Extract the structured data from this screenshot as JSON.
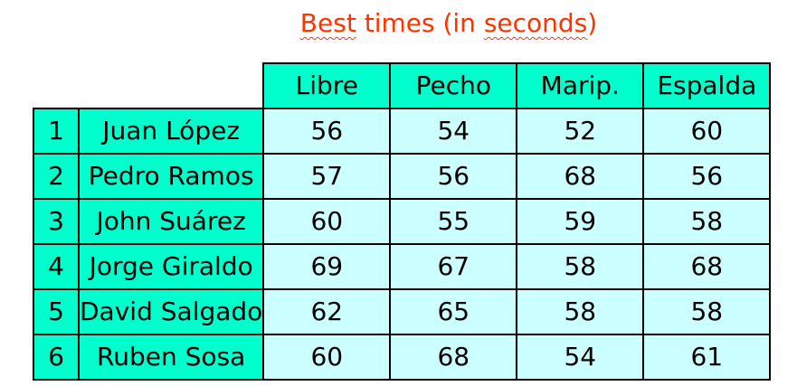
{
  "title": {
    "prefix": "Best",
    "middle": " times (in ",
    "suffix": "seconds",
    "end": ")"
  },
  "columns": [
    "Libre",
    "Pecho",
    "Marip.",
    "Espalda"
  ],
  "rows": [
    {
      "rank": "1",
      "name": "Juan López",
      "values": [
        "56",
        "54",
        "52",
        "60"
      ]
    },
    {
      "rank": "2",
      "name": "Pedro Ramos",
      "values": [
        "57",
        "56",
        "68",
        "56"
      ]
    },
    {
      "rank": "3",
      "name": "John Suárez",
      "values": [
        "60",
        "55",
        "59",
        "58"
      ]
    },
    {
      "rank": "4",
      "name": "Jorge Giraldo",
      "values": [
        "69",
        "67",
        "58",
        "68"
      ]
    },
    {
      "rank": "5",
      "name": "David Salgado",
      "values": [
        "62",
        "65",
        "58",
        "58"
      ]
    },
    {
      "rank": "6",
      "name": "Ruben Sosa",
      "values": [
        "60",
        "68",
        "54",
        "61"
      ]
    }
  ],
  "colors": {
    "title": "#ff3300",
    "header_fill": "#00ffcc",
    "cell_fill": "#ccffff",
    "border": "#000000"
  }
}
